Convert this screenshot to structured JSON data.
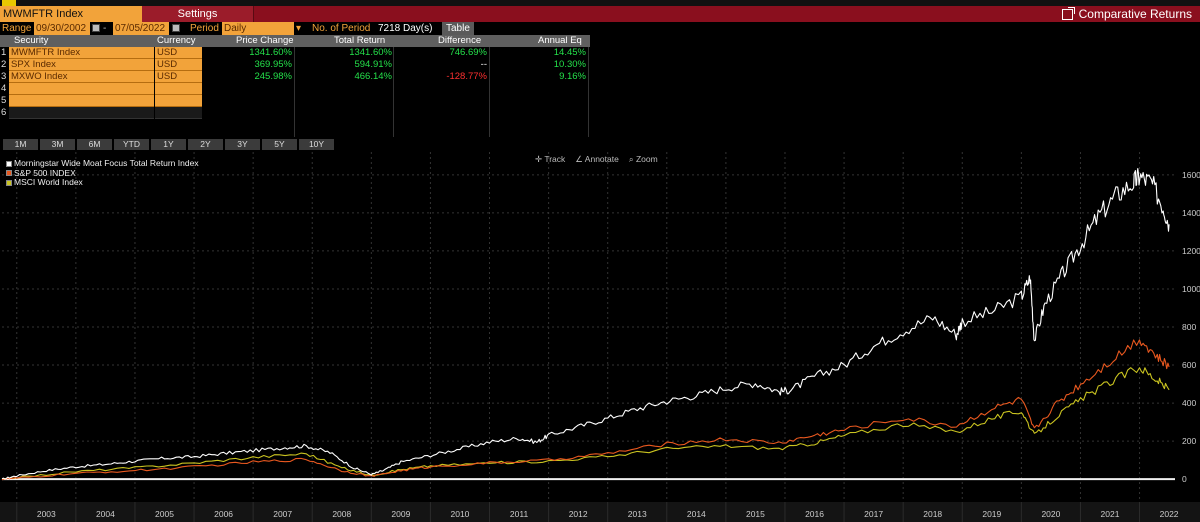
{
  "header": {
    "security": "MWMFTR Index",
    "settings_label": "Settings",
    "comparative_label": "Comparative Returns"
  },
  "range_bar": {
    "range_label": "Range",
    "start_date": "09/30/2002",
    "end_date": "07/05/2022",
    "period_label": "Period",
    "period_value": "Daily",
    "num_period_label": "No. of Period",
    "num_period_value": "7218 Day(s)",
    "table_button": "Table"
  },
  "table": {
    "headers": [
      "Security",
      "Currency",
      "Price Change",
      "Total Return",
      "Difference",
      "Annual Eq"
    ],
    "rows": [
      {
        "n": "1",
        "security": "MWMFTR Index",
        "currency": "USD",
        "price_change": "1341.60%",
        "total_return": "1341.60%",
        "difference": "746.69%",
        "annual_eq": "14.45%"
      },
      {
        "n": "2",
        "security": "SPX Index",
        "currency": "USD",
        "price_change": "369.95%",
        "total_return": "594.91%",
        "difference": "--",
        "annual_eq": "10.30%"
      },
      {
        "n": "3",
        "security": "MXWO Index",
        "currency": "USD",
        "price_change": "245.98%",
        "total_return": "466.14%",
        "difference": "-128.77%",
        "annual_eq": "9.16%"
      },
      {
        "n": "4",
        "security": "",
        "currency": "",
        "price_change": "",
        "total_return": "",
        "difference": "",
        "annual_eq": ""
      },
      {
        "n": "5",
        "security": "",
        "currency": "",
        "price_change": "",
        "total_return": "",
        "difference": "",
        "annual_eq": ""
      },
      {
        "n": "6",
        "security": "",
        "currency": "",
        "price_change": "",
        "total_return": "",
        "difference": "",
        "annual_eq": ""
      }
    ]
  },
  "period_buttons": [
    "1M",
    "3M",
    "6M",
    "YTD",
    "1Y",
    "2Y",
    "3Y",
    "5Y",
    "10Y"
  ],
  "toolbar": {
    "track": "Track",
    "annotate": "Annotate",
    "zoom": "Zoom"
  },
  "colors": {
    "accent": "#f2a33a",
    "titlebar": "#8a0f1e",
    "positive": "#24e04a",
    "negative": "#ff3030"
  },
  "chart_data": {
    "type": "line",
    "title": "",
    "xlabel": "",
    "ylabel": "",
    "x_ticks": [
      "2003",
      "2004",
      "2005",
      "2006",
      "2007",
      "2008",
      "2009",
      "2010",
      "2011",
      "2012",
      "2013",
      "2014",
      "2015",
      "2016",
      "2017",
      "2018",
      "2019",
      "2020",
      "2021",
      "2022"
    ],
    "y_ticks": [
      0,
      200,
      400,
      600,
      800,
      1000,
      1200,
      1400,
      1600
    ],
    "xlim": [
      2002.75,
      2022.6
    ],
    "ylim": [
      -120,
      1720
    ],
    "grid": true,
    "legend": "top-left",
    "series": [
      {
        "name": "Morningstar Wide Moat Focus Total Return Index",
        "color": "#ffffff",
        "x": [
          2002.75,
          2003.0,
          2003.5,
          2004.0,
          2004.5,
          2005.0,
          2005.5,
          2006.0,
          2006.5,
          2007.0,
          2007.5,
          2007.9,
          2008.3,
          2008.7,
          2009.0,
          2009.2,
          2009.5,
          2010.0,
          2010.5,
          2011.0,
          2011.5,
          2011.8,
          2012.0,
          2012.5,
          2013.0,
          2013.5,
          2014.0,
          2014.5,
          2015.0,
          2015.5,
          2015.9,
          2016.1,
          2016.5,
          2017.0,
          2017.5,
          2018.0,
          2018.5,
          2018.9,
          2019.0,
          2019.5,
          2020.0,
          2020.15,
          2020.22,
          2020.4,
          2020.7,
          2021.0,
          2021.3,
          2021.6,
          2021.9,
          2022.0,
          2022.2,
          2022.4,
          2022.5
        ],
        "y": [
          0,
          18,
          45,
          65,
          78,
          95,
          110,
          118,
          135,
          150,
          165,
          175,
          140,
          60,
          25,
          45,
          90,
          125,
          160,
          195,
          215,
          195,
          230,
          275,
          320,
          370,
          410,
          440,
          480,
          505,
          460,
          470,
          540,
          600,
          700,
          780,
          850,
          760,
          830,
          880,
          960,
          1060,
          730,
          920,
          1080,
          1230,
          1380,
          1490,
          1560,
          1590,
          1560,
          1430,
          1340
        ]
      },
      {
        "name": "S&P 500 INDEX",
        "color": "#e8581f",
        "x": [
          2002.75,
          2003.0,
          2004.0,
          2005.0,
          2006.0,
          2007.0,
          2007.9,
          2008.5,
          2009.0,
          2009.5,
          2010.0,
          2011.0,
          2012.0,
          2013.0,
          2014.0,
          2015.0,
          2015.9,
          2016.5,
          2017.0,
          2018.0,
          2018.9,
          2019.5,
          2020.0,
          2020.22,
          2020.6,
          2021.0,
          2021.5,
          2022.0,
          2022.3,
          2022.5
        ],
        "y": [
          0,
          5,
          30,
          45,
          65,
          90,
          105,
          45,
          15,
          45,
          65,
          85,
          100,
          135,
          185,
          210,
          190,
          230,
          260,
          320,
          280,
          370,
          420,
          260,
          400,
          500,
          620,
          740,
          640,
          590
        ]
      },
      {
        "name": "MSCI World Index",
        "color": "#c9c320",
        "x": [
          2002.75,
          2003.0,
          2004.0,
          2005.0,
          2006.0,
          2007.0,
          2007.9,
          2008.5,
          2009.0,
          2009.5,
          2010.0,
          2011.0,
          2012.0,
          2013.0,
          2014.0,
          2015.0,
          2015.9,
          2016.5,
          2017.0,
          2018.0,
          2018.9,
          2019.5,
          2020.0,
          2020.22,
          2020.6,
          2021.0,
          2021.5,
          2022.0,
          2022.3,
          2022.5
        ],
        "y": [
          0,
          8,
          40,
          60,
          85,
          115,
          135,
          60,
          20,
          50,
          70,
          85,
          95,
          120,
          160,
          175,
          160,
          190,
          230,
          290,
          250,
          320,
          360,
          230,
          330,
          420,
          510,
          590,
          520,
          470
        ]
      }
    ]
  }
}
